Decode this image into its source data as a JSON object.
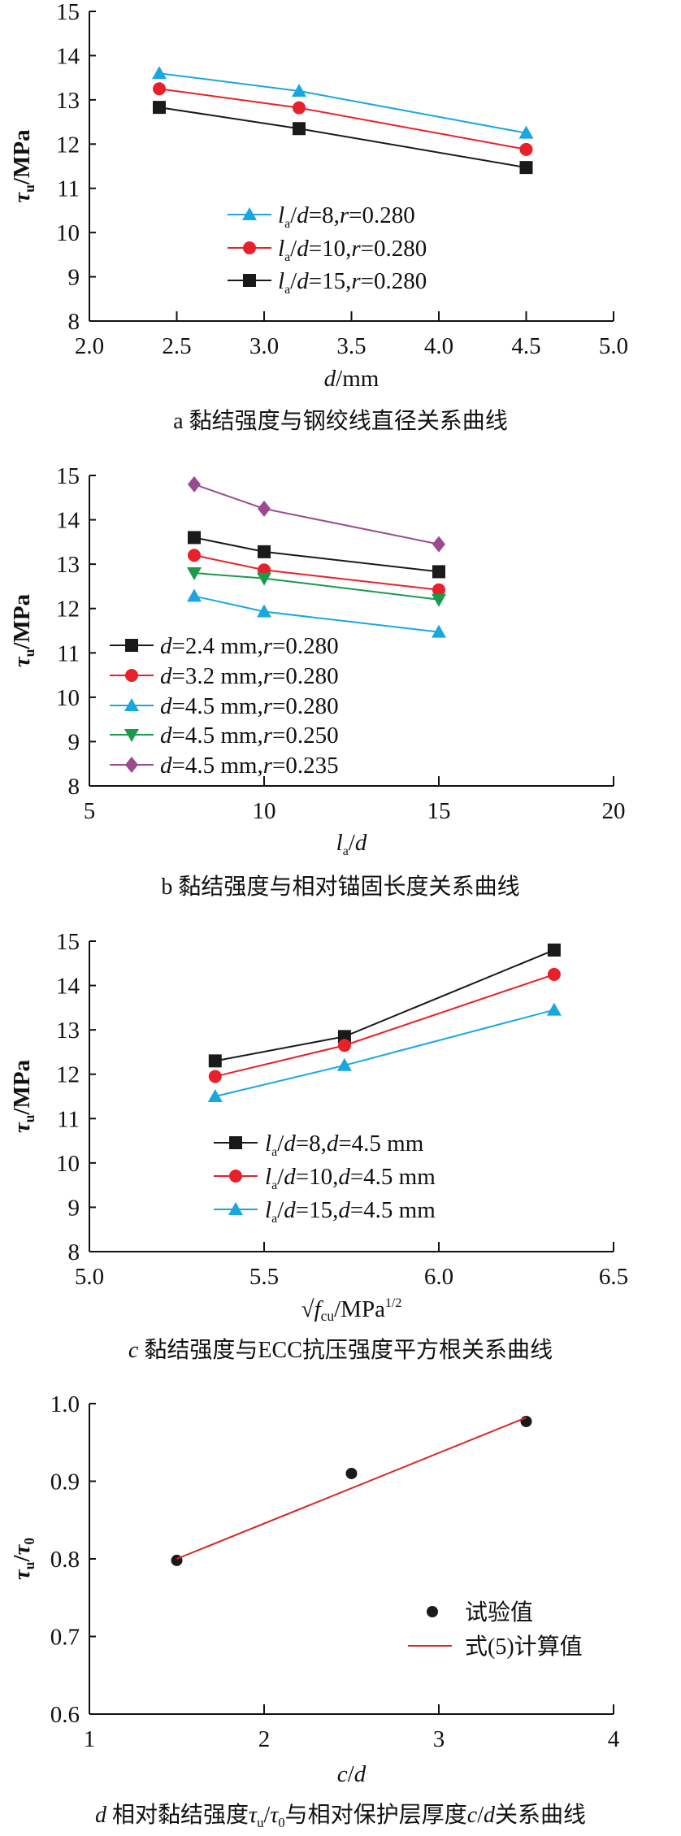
{
  "chart_data": [
    {
      "type": "line",
      "caption": "a 黏结强度与钢绞线直径关系曲线",
      "xlabel": "d/mm",
      "ylabel": "τu/MPa",
      "xlim": [
        2.0,
        5.0
      ],
      "ylim": [
        8,
        15
      ],
      "xticks": [
        "2.0",
        "2.5",
        "3.0",
        "3.5",
        "4.0",
        "4.5",
        "5.0"
      ],
      "yticks": [
        "8",
        "9",
        "10",
        "11",
        "12",
        "13",
        "14",
        "15"
      ],
      "grid": false,
      "legend_position": "center",
      "x": [
        2.4,
        3.2,
        4.5
      ],
      "series": [
        {
          "name": "la/d=8,r=0.280",
          "marker": "triangle",
          "color": "#1aa7e0",
          "values": [
            13.6,
            13.2,
            12.25
          ]
        },
        {
          "name": "la/d=10,r=0.280",
          "marker": "circle",
          "color": "#e8202a",
          "values": [
            13.25,
            12.82,
            11.88
          ]
        },
        {
          "name": "la/d=15,r=0.280",
          "marker": "square",
          "color": "#1a1a1a",
          "values": [
            12.83,
            12.35,
            11.47
          ]
        }
      ]
    },
    {
      "type": "line",
      "caption": "b 黏结强度与相对锚固长度关系曲线",
      "xlabel": "la/d",
      "ylabel": "τu/MPa",
      "xlim": [
        5,
        20
      ],
      "ylim": [
        8,
        15
      ],
      "xticks": [
        "5",
        "10",
        "15",
        "20"
      ],
      "yticks": [
        "8",
        "9",
        "10",
        "11",
        "12",
        "13",
        "14",
        "15"
      ],
      "grid": false,
      "legend_position": "bottom-left",
      "x": [
        8,
        10,
        15
      ],
      "series": [
        {
          "name": "d=2.4 mm,r=0.280",
          "marker": "square",
          "color": "#1a1a1a",
          "values": [
            13.6,
            13.28,
            12.83
          ]
        },
        {
          "name": "d=3.2 mm,r=0.280",
          "marker": "circle",
          "color": "#e8202a",
          "values": [
            13.2,
            12.87,
            12.42
          ]
        },
        {
          "name": "d=4.5 mm,r=0.280",
          "marker": "triangle",
          "color": "#1aa7e0",
          "values": [
            12.28,
            11.93,
            11.47
          ]
        },
        {
          "name": "d=4.5 mm,r=0.250",
          "marker": "triangle-down",
          "color": "#1a9a4a",
          "values": [
            12.8,
            12.68,
            12.2
          ]
        },
        {
          "name": "d=4.5 mm,r=0.235",
          "marker": "diamond",
          "color": "#9b4a8f",
          "values": [
            14.8,
            14.25,
            13.45
          ]
        }
      ]
    },
    {
      "type": "line",
      "caption": "c 黏结强度与ECC抗压强度平方根关系曲线",
      "xlabel": "√fcu/MPa1/2",
      "ylabel": "τu/MPa",
      "xlim": [
        5.0,
        6.5
      ],
      "ylim": [
        8,
        15
      ],
      "xticks": [
        "5.0",
        "5.5",
        "6.0",
        "6.5"
      ],
      "yticks": [
        "8",
        "9",
        "10",
        "11",
        "12",
        "13",
        "14",
        "15"
      ],
      "grid": false,
      "legend_position": "bottom-center",
      "x": [
        5.36,
        5.73,
        6.33
      ],
      "series": [
        {
          "name": "la/d=8,d=4.5 mm",
          "marker": "square",
          "color": "#1a1a1a",
          "values": [
            12.3,
            12.85,
            14.8
          ]
        },
        {
          "name": "la/d=10,d=4.5 mm",
          "marker": "circle",
          "color": "#e8202a",
          "values": [
            11.95,
            12.65,
            14.25
          ]
        },
        {
          "name": "la/d=15,d=4.5 mm",
          "marker": "triangle",
          "color": "#1aa7e0",
          "values": [
            11.5,
            12.2,
            13.45
          ]
        }
      ]
    },
    {
      "type": "scatter",
      "caption": "d 相对黏结强度τu/τ0与相对保护层厚度c/d关系曲线",
      "xlabel": "c/d",
      "ylabel": "τu/τ0",
      "xlim": [
        1,
        4
      ],
      "ylim": [
        0.6,
        1.0
      ],
      "xticks": [
        "1",
        "2",
        "3",
        "4"
      ],
      "yticks": [
        "0.6",
        "0.7",
        "0.8",
        "0.9",
        "1.0"
      ],
      "grid": false,
      "legend_position": "bottom-right",
      "series": [
        {
          "name": "试验值",
          "marker": "circle",
          "color": "#1a1a1a",
          "x": [
            1.5,
            2.5,
            3.5
          ],
          "values": [
            0.798,
            0.91,
            0.977
          ]
        },
        {
          "name": "式(5)计算值",
          "marker": "none",
          "line": true,
          "color": "#d42a2a",
          "x": [
            1.5,
            3.5
          ],
          "values": [
            0.8,
            0.982
          ]
        }
      ]
    }
  ]
}
